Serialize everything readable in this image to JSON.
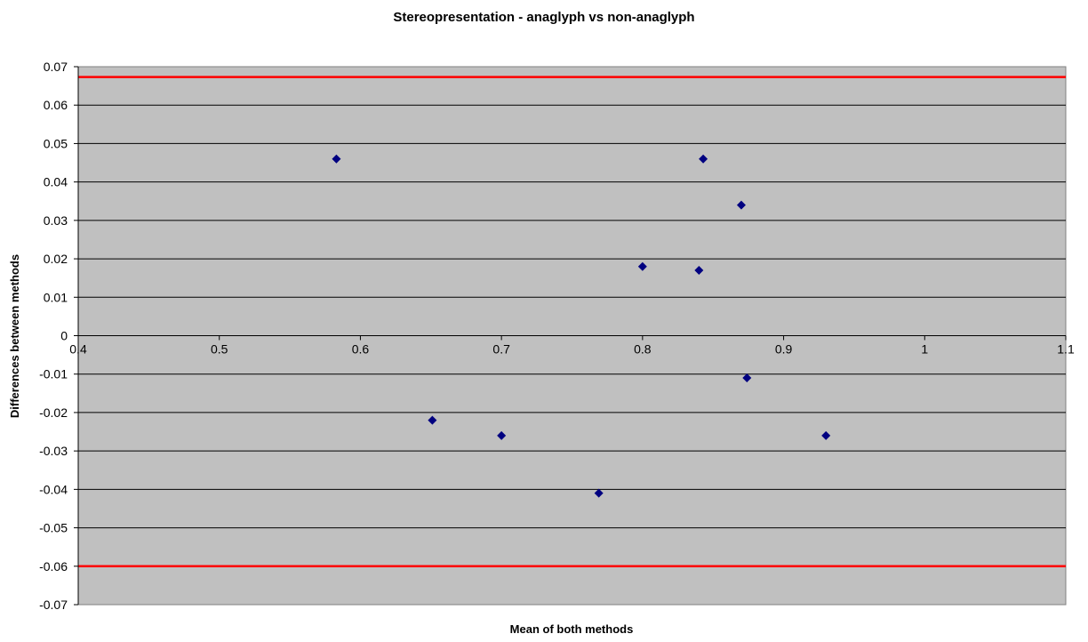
{
  "chart_data": {
    "type": "scatter",
    "title": "Stereopresentation - anaglyph vs non-anaglyph",
    "xlabel": "Mean of both methods",
    "ylabel": "Differences between methods",
    "xlim": [
      0.4,
      1.1
    ],
    "ylim": [
      -0.07,
      0.07
    ],
    "x_ticks": [
      0.4,
      0.5,
      0.6,
      0.7,
      0.8,
      0.9,
      1,
      1.1
    ],
    "x_tick_labels": [
      "0.4",
      "0.5",
      "0.6",
      "0.7",
      "0.8",
      "0.9",
      "1",
      "1.1"
    ],
    "y_ticks": [
      0.07,
      0.06,
      0.05,
      0.04,
      0.03,
      0.02,
      0.01,
      0,
      -0.01,
      -0.02,
      -0.03,
      -0.04,
      -0.05,
      -0.06,
      -0.07
    ],
    "y_tick_labels": [
      "0.07",
      "0.06",
      "0.05",
      "0.04",
      "0.03",
      "0.02",
      "0.01",
      "0",
      "-0.01",
      "-0.02",
      "-0.03",
      "-0.04",
      "-0.05",
      "-0.06",
      "-0.07"
    ],
    "grid": true,
    "legend": "none",
    "points": [
      {
        "x": 0.583,
        "y": 0.046
      },
      {
        "x": 0.843,
        "y": 0.046
      },
      {
        "x": 0.87,
        "y": 0.034
      },
      {
        "x": 0.8,
        "y": 0.018
      },
      {
        "x": 0.84,
        "y": 0.017
      },
      {
        "x": 0.874,
        "y": -0.011
      },
      {
        "x": 0.651,
        "y": -0.022
      },
      {
        "x": 0.7,
        "y": -0.026
      },
      {
        "x": 0.93,
        "y": -0.026
      },
      {
        "x": 0.769,
        "y": -0.041
      }
    ],
    "reference_lines": [
      {
        "y": 0.0673
      },
      {
        "y": -0.06
      }
    ],
    "colors": {
      "plot_background": "#c0c0c0",
      "marker": "#000080",
      "reference_line": "#ff0000",
      "grid": "#000000"
    }
  }
}
